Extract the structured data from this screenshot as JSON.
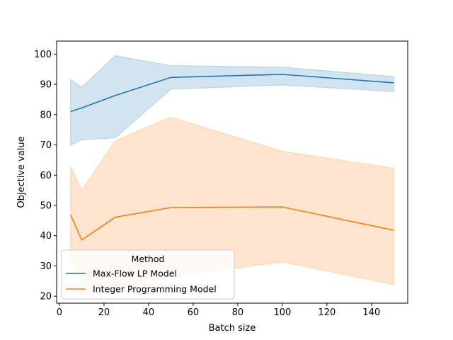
{
  "chart_data": {
    "type": "line",
    "title": "",
    "xlabel": "Batch size",
    "ylabel": "Objective value",
    "xlim": [
      -1.25,
      156.25
    ],
    "ylim": [
      17.7,
      104.3
    ],
    "xticks": [
      0,
      20,
      40,
      60,
      80,
      100,
      120,
      140
    ],
    "yticks": [
      20,
      30,
      40,
      50,
      60,
      70,
      80,
      90,
      100
    ],
    "grid": false,
    "legend": {
      "title": "Method",
      "placement": "lower-left"
    },
    "x": [
      5,
      10,
      25,
      50,
      100,
      150
    ],
    "series": [
      {
        "name": "Max-Flow LP Model",
        "color": "#1f77b4",
        "values": [
          81.0,
          82.2,
          86.3,
          92.3,
          93.3,
          90.5
        ],
        "lower": [
          69.8,
          71.7,
          72.3,
          88.4,
          89.8,
          87.6
        ],
        "upper": [
          91.6,
          89.1,
          99.5,
          96.2,
          95.7,
          92.6
        ]
      },
      {
        "name": "Integer Programming Model",
        "color": "#ff7f0e",
        "values": [
          46.9,
          38.6,
          46.1,
          49.3,
          49.5,
          41.8
        ],
        "lower": [
          32.0,
          24.0,
          22.8,
          26.5,
          31.3,
          23.8
        ],
        "upper": [
          63.0,
          55.0,
          71.4,
          79.2,
          67.9,
          62.3
        ]
      }
    ]
  }
}
